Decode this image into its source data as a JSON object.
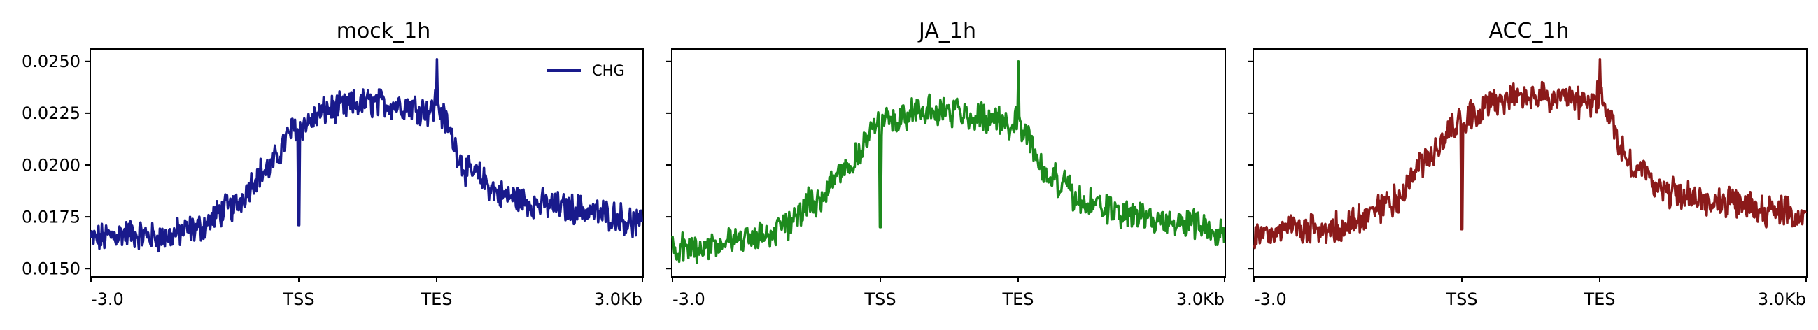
{
  "chart_data": [
    {
      "type": "line",
      "title": "mock_1h",
      "xlabel": "",
      "ylabel": "",
      "x_ticks": [
        "-3.0",
        "TSS",
        "TES",
        "3.0Kb"
      ],
      "y_ticks": [
        "0.0150",
        "0.0175",
        "0.0200",
        "0.0225",
        "0.0250"
      ],
      "ylim": [
        0.0145,
        0.0255
      ],
      "legend": {
        "placement": "top-right",
        "entries": [
          "CHG"
        ]
      },
      "series": [
        {
          "name": "CHG",
          "color": "#191a8c",
          "x": [
            "-3.0",
            "-2.5",
            "-2.0",
            "-1.5",
            "-1.0",
            "-0.5",
            "TSS",
            "0.25",
            "0.5",
            "0.75",
            "TES",
            "0.5",
            "1.0",
            "1.5",
            "2.0",
            "2.5",
            "3.0Kb"
          ],
          "values": [
            0.0163,
            0.0166,
            0.0164,
            0.0168,
            0.0178,
            0.0196,
            0.0218,
            0.0226,
            0.0229,
            0.0228,
            0.0225,
            0.0195,
            0.0184,
            0.018,
            0.0178,
            0.0175,
            0.017
          ],
          "spikes": [
            {
              "at": "TSS",
              "value": 0.017
            },
            {
              "at": "TES",
              "value": 0.025
            }
          ]
        }
      ]
    },
    {
      "type": "line",
      "title": "JA_1h",
      "xlabel": "",
      "ylabel": "",
      "x_ticks": [
        "-3.0",
        "TSS",
        "TES",
        "3.0Kb"
      ],
      "ylim": [
        0.0145,
        0.0255
      ],
      "series": [
        {
          "name": "",
          "color": "#1d8a1d",
          "x": [
            "-3.0",
            "-2.5",
            "-2.0",
            "-1.5",
            "-1.0",
            "-0.5",
            "TSS",
            "0.25",
            "0.5",
            "0.75",
            "TES",
            "0.5",
            "1.0",
            "1.5",
            "2.0",
            "2.5",
            "3.0Kb"
          ],
          "values": [
            0.0158,
            0.016,
            0.0163,
            0.0167,
            0.018,
            0.0198,
            0.0219,
            0.0225,
            0.0225,
            0.0222,
            0.0218,
            0.0192,
            0.018,
            0.0176,
            0.0172,
            0.0171,
            0.0168
          ],
          "spikes": [
            {
              "at": "TSS",
              "value": 0.0169
            },
            {
              "at": "TES",
              "value": 0.0249
            }
          ]
        }
      ]
    },
    {
      "type": "line",
      "title": "ACC_1h",
      "xlabel": "",
      "ylabel": "",
      "x_ticks": [
        "-3.0",
        "TSS",
        "TES",
        "3.0Kb"
      ],
      "ylim": [
        0.0145,
        0.0255
      ],
      "series": [
        {
          "name": "",
          "color": "#8b1a1a",
          "x": [
            "-3.0",
            "-2.5",
            "-2.0",
            "-1.5",
            "-1.0",
            "-0.5",
            "TSS",
            "0.25",
            "0.5",
            "0.75",
            "TES",
            "0.5",
            "1.0",
            "1.5",
            "2.0",
            "2.5",
            "3.0Kb"
          ],
          "values": [
            0.0165,
            0.0168,
            0.0167,
            0.0172,
            0.0182,
            0.0202,
            0.0222,
            0.023,
            0.0232,
            0.023,
            0.0228,
            0.0198,
            0.0186,
            0.0182,
            0.018,
            0.0177,
            0.0174
          ],
          "spikes": [
            {
              "at": "TSS",
              "value": 0.0168
            },
            {
              "at": "TES",
              "value": 0.025
            }
          ]
        }
      ]
    }
  ]
}
